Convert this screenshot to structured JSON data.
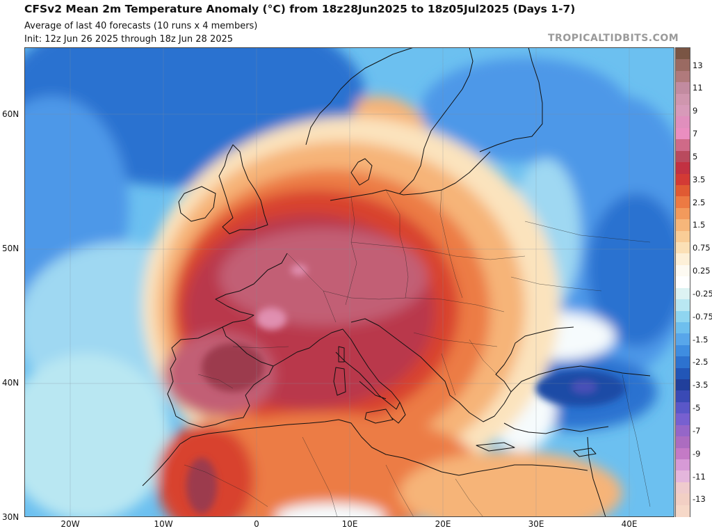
{
  "header": {
    "title": "CFSv2 Mean 2m Temperature Anomaly (°C) from 18z28Jun2025 to 18z05Jul2025 (Days 1-7)",
    "subtitle": "Average of last 40 forecasts (10 runs x 4 members)",
    "init": "Init: 12z Jun 26 2025 through 18z Jun 28 2025",
    "brand": "TROPICALTIDBITS.COM"
  },
  "axes": {
    "lat_labels": [
      "60N",
      "50N",
      "40N",
      "30N"
    ],
    "lon_labels": [
      "20W",
      "10W",
      "0",
      "10E",
      "20E",
      "30E",
      "40E"
    ]
  },
  "colorbar": {
    "levels": [
      {
        "label": "",
        "color": "#7a5544"
      },
      {
        "label": "13",
        "color": "#9a6a62"
      },
      {
        "label": "",
        "color": "#b07a7c"
      },
      {
        "label": "11",
        "color": "#c28ba0"
      },
      {
        "label": "",
        "color": "#cf96ae"
      },
      {
        "label": "9",
        "color": "#d79ab9"
      },
      {
        "label": "",
        "color": "#e08fbd"
      },
      {
        "label": "7",
        "color": "#ea8ec0"
      },
      {
        "label": "",
        "color": "#cf6a88"
      },
      {
        "label": "5",
        "color": "#b94a5e"
      },
      {
        "label": "",
        "color": "#c23142"
      },
      {
        "label": "3.5",
        "color": "#d33a35"
      },
      {
        "label": "",
        "color": "#e05a33"
      },
      {
        "label": "2.5",
        "color": "#ec7a43"
      },
      {
        "label": "",
        "color": "#f29a5c"
      },
      {
        "label": "1.5",
        "color": "#f6b67a"
      },
      {
        "label": "",
        "color": "#f9cd97"
      },
      {
        "label": "0.75",
        "color": "#fbe0b6"
      },
      {
        "label": "",
        "color": "#fdf0d8"
      },
      {
        "label": "0.25",
        "color": "#fdfaf2"
      },
      {
        "label": "",
        "color": "#ffffff"
      },
      {
        "label": "-0.25",
        "color": "#ddf3f3"
      },
      {
        "label": "",
        "color": "#b9e7f2"
      },
      {
        "label": "-0.75",
        "color": "#8fd5f0"
      },
      {
        "label": "",
        "color": "#6ebfee"
      },
      {
        "label": "-1.5",
        "color": "#58a6ea"
      },
      {
        "label": "",
        "color": "#3f8de0"
      },
      {
        "label": "-2.5",
        "color": "#2d72cf"
      },
      {
        "label": "",
        "color": "#2256b7"
      },
      {
        "label": "-3.5",
        "color": "#213f9b"
      },
      {
        "label": "",
        "color": "#3a4ab5"
      },
      {
        "label": "-5",
        "color": "#5a57c8"
      },
      {
        "label": "",
        "color": "#7760d0"
      },
      {
        "label": "-7",
        "color": "#9566c8"
      },
      {
        "label": "",
        "color": "#ac6cc0"
      },
      {
        "label": "-9",
        "color": "#c47ac6"
      },
      {
        "label": "",
        "color": "#d79ad6"
      },
      {
        "label": "-11",
        "color": "#e4b6dc"
      },
      {
        "label": "",
        "color": "#efcbcd"
      },
      {
        "label": "-13",
        "color": "#f2cfc4"
      },
      {
        "label": "",
        "color": "#f6d8c8"
      }
    ]
  },
  "map": {
    "ocean_color": "#6cc0f0",
    "colors": {
      "deep_blue": "#2a72d0",
      "blue": "#4d98e8",
      "light_blue": "#9fd8f2",
      "white": "#f6fbfd",
      "cream": "#fbe3bd",
      "light_orange": "#f6b478",
      "orange": "#ec7b45",
      "red": "#d8432f",
      "dark_red": "#b9384c",
      "maroon": "#9c3a4e",
      "mauve": "#c25f74",
      "pink": "#e08fb0",
      "navy": "#1f4ca6",
      "purple": "#4a4fb8"
    }
  }
}
